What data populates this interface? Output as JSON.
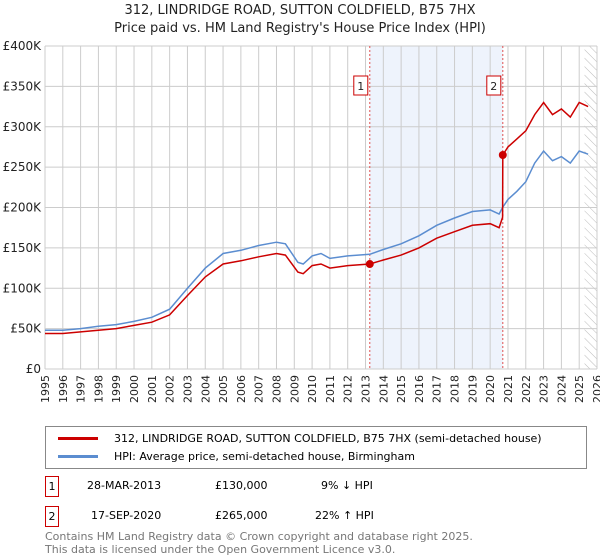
{
  "title": "312, LINDRIDGE ROAD, SUTTON COLDFIELD, B75 7HX",
  "subtitle": "Price paid vs. HM Land Registry's House Price Index (HPI)",
  "chart_data": {
    "type": "line",
    "xlim": [
      1995,
      2026
    ],
    "ylim": [
      0,
      400000
    ],
    "y_ticks": [
      0,
      50000,
      100000,
      150000,
      200000,
      250000,
      300000,
      350000,
      400000
    ],
    "y_tick_labels": [
      "£0",
      "£50K",
      "£100K",
      "£150K",
      "£200K",
      "£250K",
      "£300K",
      "£350K",
      "£400K"
    ],
    "x_ticks": [
      1995,
      1996,
      1997,
      1998,
      1999,
      2000,
      2001,
      2002,
      2003,
      2004,
      2005,
      2006,
      2007,
      2008,
      2009,
      2010,
      2011,
      2012,
      2013,
      2014,
      2015,
      2016,
      2017,
      2018,
      2019,
      2020,
      2021,
      2022,
      2023,
      2024,
      2025,
      2026
    ],
    "grid": true,
    "shaded_period": [
      2013.24,
      2020.71
    ],
    "hatched_from": 2025.3,
    "series": [
      {
        "name": "312, LINDRIDGE ROAD, SUTTON COLDFIELD, B75 7HX (semi-detached house)",
        "color": "#cc0000",
        "x": [
          1995,
          1996,
          1997,
          1998,
          1999,
          2000,
          2001,
          2002,
          2003,
          2004,
          2005,
          2006,
          2007,
          2008,
          2008.5,
          2009.2,
          2009.5,
          2010,
          2010.5,
          2011,
          2012,
          2013.24,
          2014,
          2015,
          2016,
          2017,
          2018,
          2019,
          2020,
          2020.5,
          2020.7,
          2020.71,
          2021,
          2021.5,
          2022,
          2022.5,
          2023,
          2023.5,
          2024,
          2024.5,
          2025,
          2025.5
        ],
        "y": [
          44000,
          44000,
          46000,
          48000,
          50000,
          54000,
          58000,
          67000,
          91000,
          114000,
          130000,
          134000,
          139000,
          143000,
          141000,
          120000,
          118000,
          128000,
          130000,
          125000,
          128000,
          130000,
          135000,
          141000,
          150000,
          162000,
          170000,
          178000,
          180000,
          175000,
          188000,
          265000,
          275000,
          285000,
          295000,
          315000,
          330000,
          315000,
          322000,
          312000,
          330000,
          325000
        ]
      },
      {
        "name": "HPI: Average price, semi-detached house, Birmingham",
        "color": "#5b8dd0",
        "x": [
          1995,
          1996,
          1997,
          1998,
          1999,
          2000,
          2001,
          2002,
          2003,
          2004,
          2005,
          2006,
          2007,
          2008,
          2008.5,
          2009.2,
          2009.5,
          2010,
          2010.5,
          2011,
          2012,
          2013.24,
          2014,
          2015,
          2016,
          2017,
          2018,
          2019,
          2020,
          2020.5,
          2020.7,
          2021,
          2021.5,
          2022,
          2022.5,
          2023,
          2023.5,
          2024,
          2024.5,
          2025,
          2025.5
        ],
        "y": [
          48000,
          48000,
          50000,
          53000,
          55000,
          59000,
          64000,
          74000,
          100000,
          125000,
          143000,
          147000,
          153000,
          157000,
          155000,
          132000,
          130000,
          140000,
          143000,
          137000,
          140000,
          142000,
          148000,
          155000,
          165000,
          178000,
          187000,
          195000,
          197000,
          192000,
          200000,
          210000,
          220000,
          232000,
          255000,
          270000,
          258000,
          263000,
          255000,
          270000,
          266000
        ]
      }
    ],
    "sales": [
      {
        "label": "1",
        "x": 2013.24,
        "y": 130000
      },
      {
        "label": "2",
        "x": 2020.71,
        "y": 265000
      }
    ]
  },
  "legend": [
    {
      "label": "312, LINDRIDGE ROAD, SUTTON COLDFIELD, B75 7HX (semi-detached house)",
      "color": "#cc0000"
    },
    {
      "label": "HPI: Average price, semi-detached house, Birmingham",
      "color": "#5b8dd0"
    }
  ],
  "transactions": [
    {
      "num": "1",
      "date": "28-MAR-2013",
      "price": "£130,000",
      "hpi": "9% ↓ HPI"
    },
    {
      "num": "2",
      "date": "17-SEP-2020",
      "price": "£265,000",
      "hpi": "22% ↑ HPI"
    }
  ],
  "footer": [
    "Contains HM Land Registry data © Crown copyright and database right 2025.",
    "This data is licensed under the Open Government Licence v3.0."
  ]
}
